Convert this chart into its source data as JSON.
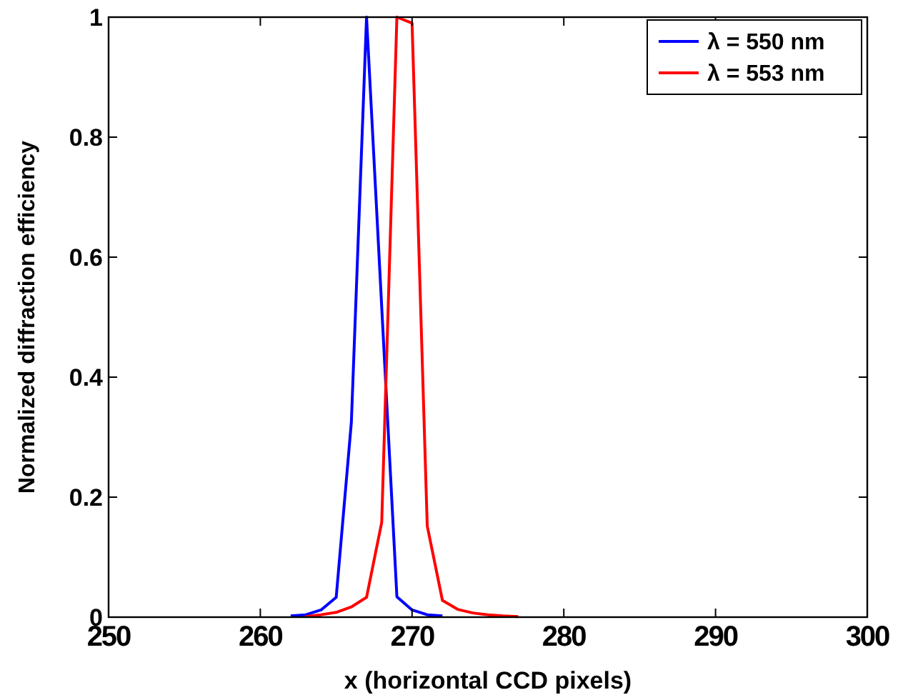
{
  "chart_data": {
    "type": "line",
    "xlabel": "x (horizontal CCD pixels)",
    "ylabel": "Normalized diffraction efficiency",
    "xlim": [
      250,
      300
    ],
    "ylim": [
      0,
      1
    ],
    "xticks": [
      250,
      260,
      270,
      280,
      290,
      300
    ],
    "yticks": [
      0,
      0.2,
      0.4,
      0.6,
      0.8,
      1
    ],
    "legend": "top right",
    "grid": false,
    "marker": "none",
    "line_style": "solid",
    "series": [
      {
        "name": "λ = 550 nm",
        "color": "#0000ff",
        "x": [
          262,
          263,
          264,
          265,
          266,
          267,
          269,
          270,
          271,
          272
        ],
        "values": [
          0.002,
          0.004,
          0.012,
          0.033,
          0.325,
          1,
          0.034,
          0.012,
          0.004,
          0.002
        ]
      },
      {
        "name": "λ = 553 nm",
        "color": "#ff0000",
        "x": [
          263,
          264,
          265,
          266,
          267,
          268,
          269,
          270,
          271,
          272,
          273,
          274,
          275,
          276,
          277
        ],
        "values": [
          0.001,
          0.004,
          0.008,
          0.017,
          0.033,
          0.158,
          1,
          0.99,
          0.152,
          0.028,
          0.013,
          0.007,
          0.004,
          0.002,
          0.001
        ]
      }
    ]
  }
}
